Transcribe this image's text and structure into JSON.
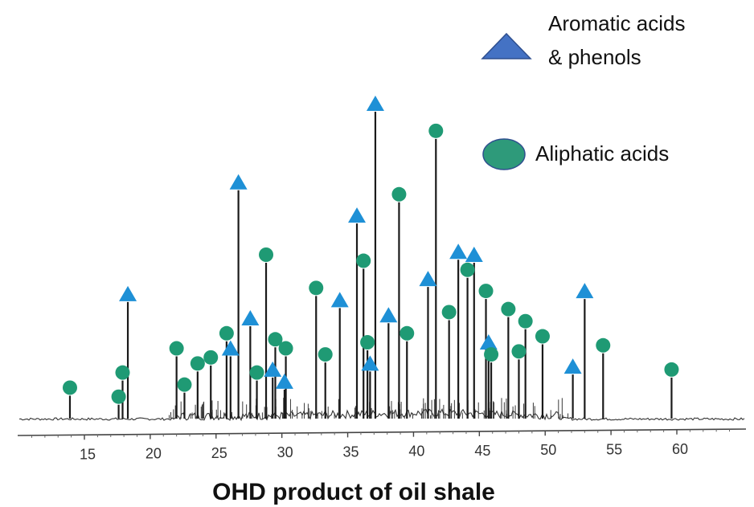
{
  "chart_data": {
    "type": "line",
    "title": "OHD product of oil shale",
    "xlabel": "",
    "ylabel": "",
    "xlim": [
      10,
      65
    ],
    "ylim": [
      0,
      100
    ],
    "x_ticks": [
      15,
      20,
      25,
      30,
      35,
      40,
      45,
      50,
      55,
      60
    ],
    "grid": false,
    "legend": {
      "placement": "top-right",
      "entries": [
        {
          "label_lines": [
            "Aromatic acids",
            "& phenols"
          ],
          "marker": "triangle",
          "color": "#4472C4"
        },
        {
          "label_lines": [
            "Aliphatic acids"
          ],
          "marker": "circle",
          "color": "#2E9A7A"
        }
      ]
    },
    "series": [
      {
        "name": "Aromatic acids & phenols",
        "marker": "triangle",
        "color": "#1E90D6",
        "peaks": [
          {
            "x": 18.3,
            "y": 37
          },
          {
            "x": 26.1,
            "y": 19
          },
          {
            "x": 26.7,
            "y": 74
          },
          {
            "x": 27.6,
            "y": 29
          },
          {
            "x": 29.3,
            "y": 12
          },
          {
            "x": 30.2,
            "y": 8
          },
          {
            "x": 34.4,
            "y": 35
          },
          {
            "x": 35.7,
            "y": 63
          },
          {
            "x": 36.7,
            "y": 14
          },
          {
            "x": 37.1,
            "y": 100
          },
          {
            "x": 38.1,
            "y": 30
          },
          {
            "x": 41.1,
            "y": 42
          },
          {
            "x": 43.4,
            "y": 51
          },
          {
            "x": 44.6,
            "y": 50
          },
          {
            "x": 45.7,
            "y": 21
          },
          {
            "x": 52.1,
            "y": 13
          },
          {
            "x": 53.0,
            "y": 38
          }
        ]
      },
      {
        "name": "Aliphatic acids",
        "marker": "circle",
        "color": "#1F9A74",
        "peaks": [
          {
            "x": 13.9,
            "y": 6
          },
          {
            "x": 17.6,
            "y": 3
          },
          {
            "x": 17.9,
            "y": 11
          },
          {
            "x": 22.0,
            "y": 19
          },
          {
            "x": 22.6,
            "y": 7
          },
          {
            "x": 23.6,
            "y": 14
          },
          {
            "x": 24.6,
            "y": 16
          },
          {
            "x": 25.8,
            "y": 24
          },
          {
            "x": 28.1,
            "y": 11
          },
          {
            "x": 28.8,
            "y": 50
          },
          {
            "x": 29.5,
            "y": 22
          },
          {
            "x": 30.3,
            "y": 19
          },
          {
            "x": 32.6,
            "y": 39
          },
          {
            "x": 33.3,
            "y": 17
          },
          {
            "x": 36.2,
            "y": 48
          },
          {
            "x": 36.5,
            "y": 21
          },
          {
            "x": 38.9,
            "y": 70
          },
          {
            "x": 39.5,
            "y": 24
          },
          {
            "x": 41.7,
            "y": 91
          },
          {
            "x": 42.7,
            "y": 31
          },
          {
            "x": 44.1,
            "y": 45
          },
          {
            "x": 45.5,
            "y": 38
          },
          {
            "x": 45.9,
            "y": 17
          },
          {
            "x": 47.2,
            "y": 32
          },
          {
            "x": 48.0,
            "y": 18
          },
          {
            "x": 48.5,
            "y": 28
          },
          {
            "x": 49.8,
            "y": 23
          },
          {
            "x": 54.4,
            "y": 20
          },
          {
            "x": 59.6,
            "y": 12
          }
        ]
      }
    ]
  }
}
